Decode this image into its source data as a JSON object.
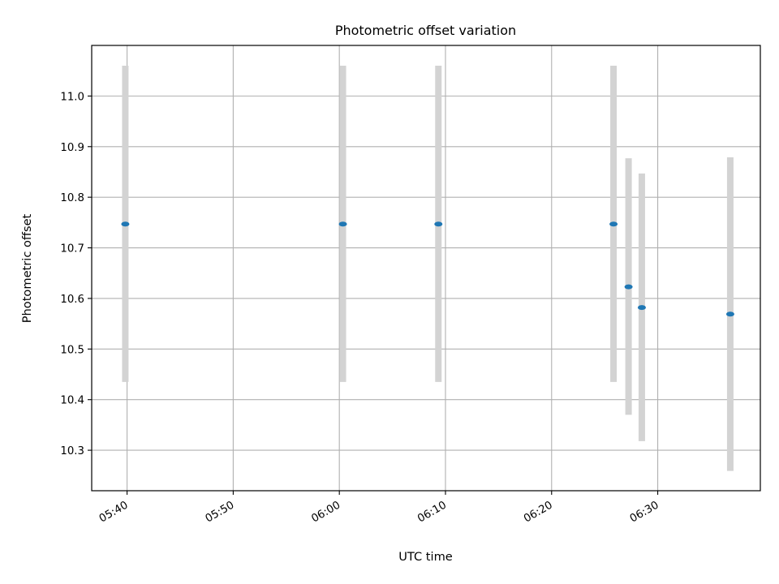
{
  "chart_data": {
    "type": "scatter",
    "title": "Photometric offset variation",
    "xlabel": "UTC time",
    "ylabel": "Photometric offset",
    "x_tick_labels": [
      "05:40",
      "05:50",
      "06:00",
      "06:10",
      "06:20",
      "06:30"
    ],
    "x_ticks": [
      "05:40",
      "05:50",
      "06:00",
      "06:10",
      "06:20",
      "06:30"
    ],
    "xlim": [
      "05:36:40",
      "06:39:40"
    ],
    "y_ticks": [
      10.3,
      10.4,
      10.5,
      10.6,
      10.7,
      10.8,
      10.9,
      11.0
    ],
    "y_tick_labels": [
      "10.3",
      "10.4",
      "10.5",
      "10.6",
      "10.7",
      "10.8",
      "10.9",
      "11.0"
    ],
    "ylim": [
      10.22,
      11.1
    ],
    "grid": true,
    "legend": "none",
    "points": [
      {
        "x": "05:39:50",
        "y": 10.747,
        "ymin": 10.435,
        "ymax": 11.06
      },
      {
        "x": "06:00:20",
        "y": 10.747,
        "ymin": 10.435,
        "ymax": 11.06
      },
      {
        "x": "06:09:20",
        "y": 10.747,
        "ymin": 10.435,
        "ymax": 11.06
      },
      {
        "x": "06:25:50",
        "y": 10.747,
        "ymin": 10.435,
        "ymax": 11.06
      },
      {
        "x": "06:27:15",
        "y": 10.623,
        "ymin": 10.37,
        "ymax": 10.877
      },
      {
        "x": "06:28:30",
        "y": 10.582,
        "ymin": 10.318,
        "ymax": 10.847
      },
      {
        "x": "06:36:50",
        "y": 10.569,
        "ymin": 10.259,
        "ymax": 10.879
      }
    ],
    "colors": {
      "marker": "#1f77b4",
      "errorbar": "#d3d3d3",
      "grid": "#b0b0b0",
      "axes": "#000000"
    }
  }
}
